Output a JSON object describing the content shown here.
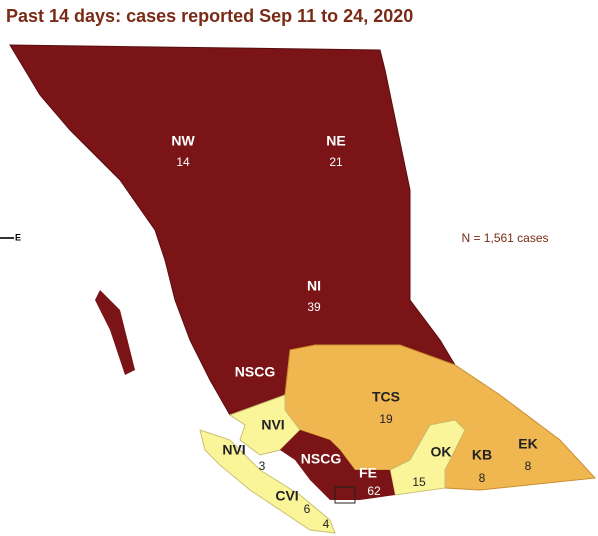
{
  "title": "Past 14 days: cases reported Sep 11 to 24, 2020",
  "note": "N = 1,561 cases",
  "compass": "E",
  "regions": [
    {
      "label": "NW",
      "cases": 14
    },
    {
      "label": "NE",
      "cases": 21
    },
    {
      "label": "NI",
      "cases": 39
    },
    {
      "label": "NSCG"
    },
    {
      "label": "TCS",
      "cases": 19
    },
    {
      "label": "NVI"
    },
    {
      "label": "NVI",
      "cases": 3
    },
    {
      "label": "NSCG"
    },
    {
      "label": "FE",
      "cases": 62
    },
    {
      "label": "OK",
      "cases": 15
    },
    {
      "label": "KB",
      "cases": 8
    },
    {
      "label": "EK",
      "cases": 8
    },
    {
      "label": "CVI",
      "cases": 6
    },
    {
      "cases": 4
    }
  ]
}
